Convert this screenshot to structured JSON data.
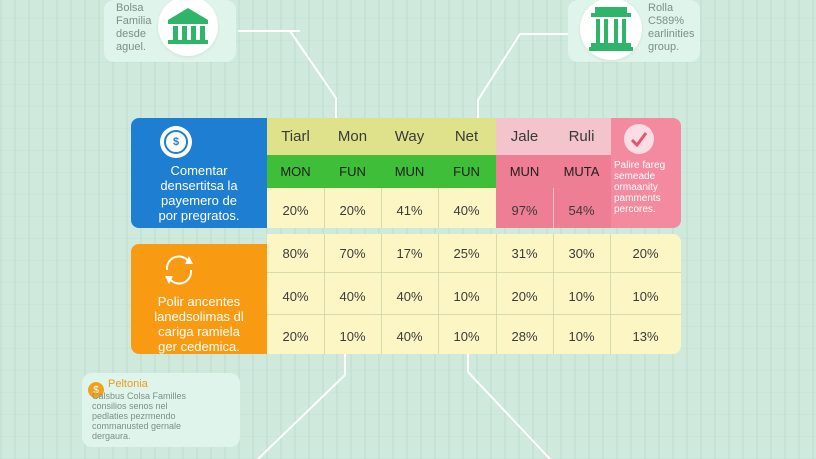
{
  "top_left_note": {
    "lines": [
      "Bolsa",
      "Familia",
      "desde",
      "aguel."
    ]
  },
  "top_right_note": {
    "lines": [
      "Rolla",
      "C589%",
      "earlinities",
      "group."
    ]
  },
  "bottom_left_note": {
    "title": "Peltonia",
    "lines": [
      "Calsbus Colsa Familles",
      "consilios senos nel",
      "pedlaties pezrmendo",
      "commanusted gernale",
      "dergaura."
    ]
  },
  "table1": {
    "left_text": [
      "Comentar",
      "densertitsa la",
      "payemero de",
      "por pregratos."
    ],
    "headers": [
      "Tiarl",
      "Mon",
      "Way",
      "Net",
      "Jale",
      "Ruli"
    ],
    "subheaders": [
      "MON",
      "FUN",
      "MUN",
      "FUN",
      "MUN",
      "MUTA"
    ],
    "row": [
      "20%",
      "20%",
      "41%",
      "40%",
      "97%",
      "54%"
    ],
    "right_text": [
      "Palire fareg",
      "semeade",
      "ormaanity",
      "pamments",
      "percores."
    ]
  },
  "table2": {
    "left_text": [
      "Polir ancentes",
      "lanedsolimas dl",
      "cariga ramiela",
      "ger cedemica."
    ],
    "rows": [
      [
        "80%",
        "70%",
        "17%",
        "25%",
        "31%",
        "30%",
        "20%"
      ],
      [
        "40%",
        "40%",
        "40%",
        "10%",
        "20%",
        "10%",
        "10%"
      ],
      [
        "20%",
        "10%",
        "40%",
        "10%",
        "28%",
        "10%",
        "13%"
      ]
    ]
  },
  "colors": {
    "blue": "#1e7fd2",
    "orange": "#f89a12",
    "green": "#3fbe39",
    "pink_header": "#f3c4cc",
    "pink_cells": "#ee7e94",
    "pink_side": "#f07088",
    "cream": "#fbf6c4"
  }
}
